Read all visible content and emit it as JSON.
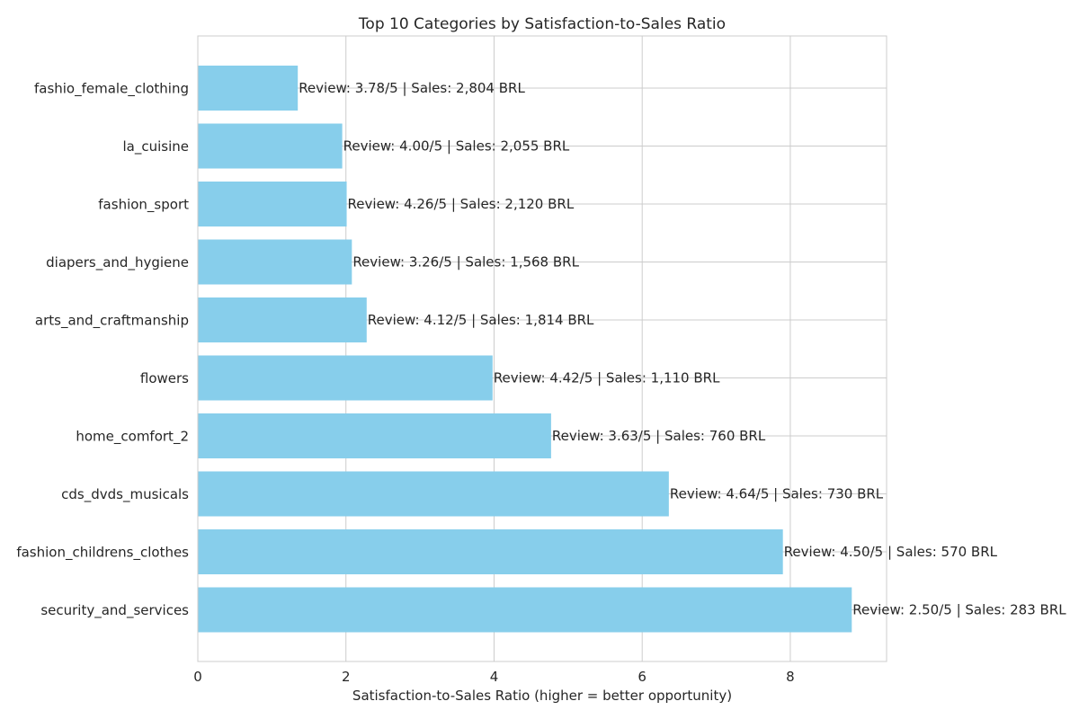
{
  "chart_data": {
    "type": "bar",
    "orientation": "horizontal",
    "title": "Top 10 Categories by Satisfaction-to-Sales Ratio",
    "xlabel": "Satisfaction-to-Sales Ratio (higher = better opportunity)",
    "ylabel": "",
    "xlim": [
      0,
      9.3
    ],
    "xticks": [
      0,
      2,
      4,
      6,
      8
    ],
    "grid": true,
    "bar_color": "#87CEEB",
    "categories": [
      "fashio_female_clothing",
      "la_cuisine",
      "fashion_sport",
      "diapers_and_hygiene",
      "arts_and_craftmanship",
      "flowers",
      "home_comfort_2",
      "cds_dvds_musicals",
      "fashion_childrens_clothes",
      "security_and_services"
    ],
    "values": [
      1.35,
      1.95,
      2.01,
      2.08,
      2.28,
      3.98,
      4.77,
      6.36,
      7.9,
      8.83
    ],
    "data_labels": [
      "Review: 3.78/5 | Sales: 2,804 BRL",
      "Review: 4.00/5 | Sales: 2,055 BRL",
      "Review: 4.26/5 | Sales: 2,120 BRL",
      "Review: 3.26/5 | Sales: 1,568 BRL",
      "Review: 4.12/5 | Sales: 1,814 BRL",
      "Review: 4.42/5 | Sales: 1,110 BRL",
      "Review: 3.63/5 | Sales: 760 BRL",
      "Review: 4.64/5 | Sales: 730 BRL",
      "Review: 4.50/5 | Sales: 570 BRL",
      "Review: 2.50/5 | Sales: 283 BRL"
    ]
  }
}
